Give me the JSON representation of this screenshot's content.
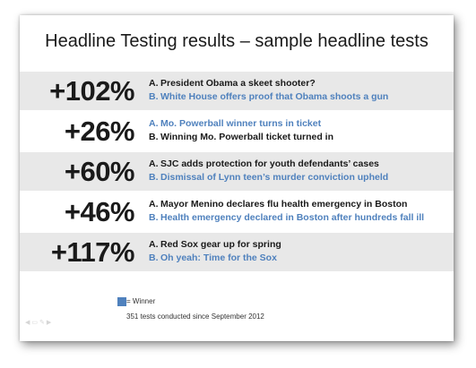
{
  "title": "Headline Testing results – sample headline tests",
  "tests": [
    {
      "lift": "+102%",
      "a": {
        "label": "A.",
        "text": "President Obama a skeet shooter?",
        "winner": false
      },
      "b": {
        "label": "B.",
        "text": "White House offers proof that Obama shoots a gun",
        "winner": true
      }
    },
    {
      "lift": "+26%",
      "a": {
        "label": "A.",
        "text": "Mo. Powerball winner turns in ticket",
        "winner": true
      },
      "b": {
        "label": "B.",
        "text": "Winning Mo. Powerball ticket turned in",
        "winner": false
      }
    },
    {
      "lift": "+60%",
      "a": {
        "label": "A.",
        "text": "SJC adds protection for youth defendants’ cases",
        "winner": false
      },
      "b": {
        "label": "B.",
        "text": "Dismissal of Lynn teen’s murder conviction upheld",
        "winner": true
      }
    },
    {
      "lift": "+46%",
      "a": {
        "label": "A.",
        "text": "Mayor Menino declares flu health emergency in Boston",
        "winner": false
      },
      "b": {
        "label": "B.",
        "text": "Health emergency declared in Boston after hundreds fall ill",
        "winner": true
      }
    },
    {
      "lift": "+117%",
      "a": {
        "label": "A.",
        "text": "Red Sox gear up for spring",
        "winner": false
      },
      "b": {
        "label": "B.",
        "text": "Oh yeah: Time for the Sox",
        "winner": true
      }
    }
  ],
  "legend": {
    "label": "= Winner",
    "color": "#4f81bd"
  },
  "footnote": "351 tests conducted since September 2012",
  "colors": {
    "winner": "#4f81bd",
    "default": "#1a1a1a",
    "shade": "#e8e8e8"
  }
}
